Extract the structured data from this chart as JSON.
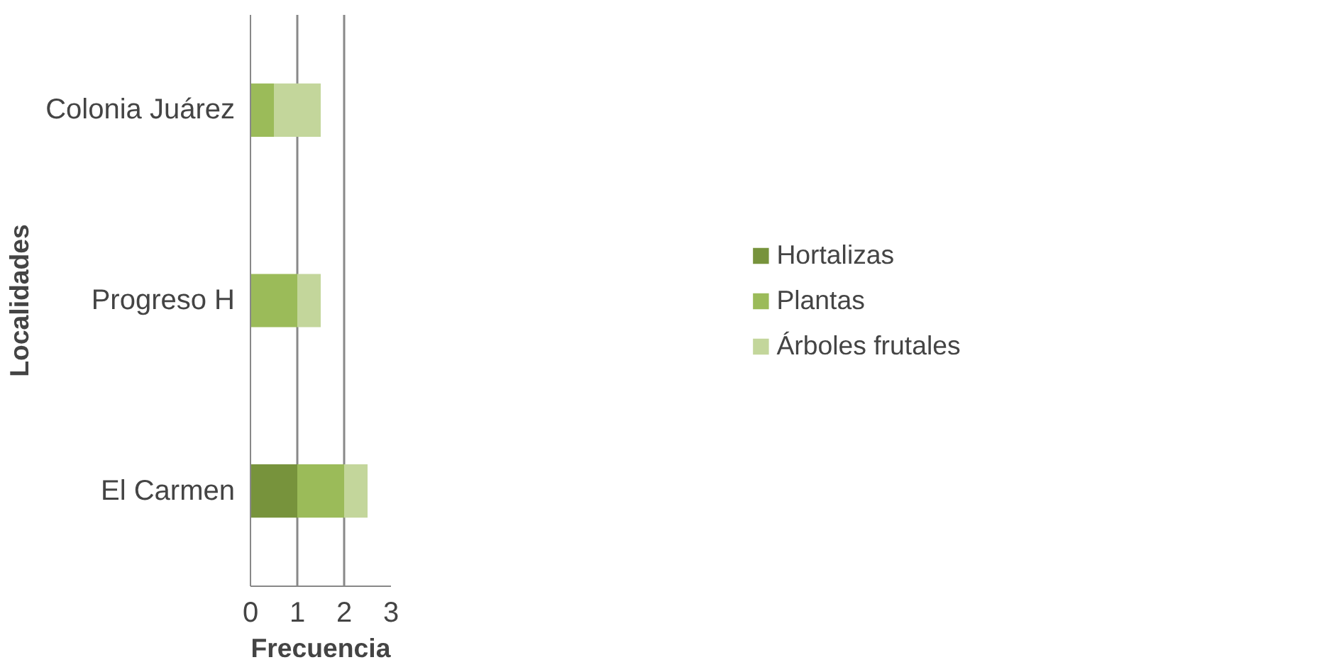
{
  "chart_data": {
    "type": "bar",
    "orientation": "horizontal",
    "stacked": true,
    "categories": [
      "Colonia Juárez",
      "Progreso H",
      "El Carmen"
    ],
    "series": [
      {
        "name": "Hortalizas",
        "color": "#77933c",
        "values": [
          0,
          0,
          1
        ]
      },
      {
        "name": "Plantas",
        "color": "#9bbb59",
        "values": [
          0.5,
          1,
          1
        ]
      },
      {
        "name": "Árboles frutales",
        "color": "#c3d69b",
        "values": [
          1,
          0.5,
          0.5
        ]
      }
    ],
    "xlim": [
      0,
      3
    ],
    "xticks": [
      0,
      1,
      2,
      3
    ],
    "xlabel": "Frecuencia",
    "ylabel": "Localidades",
    "grid": "x",
    "legend": "right"
  }
}
